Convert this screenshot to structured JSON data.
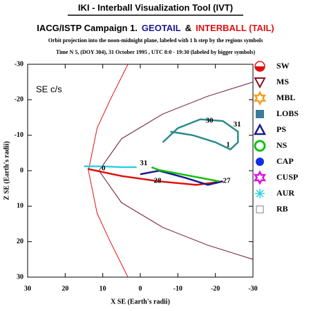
{
  "chart_data": {
    "type": "line",
    "title": "IKI - Interball Visualization Tool (IVT)",
    "subtitle_parts": [
      {
        "text": "IACG/ISTP Campaign 1.",
        "color": "#000000"
      },
      {
        "text": "GEOTAIL",
        "color": "#1a1a8c"
      },
      {
        "text": "&",
        "color": "#000000"
      },
      {
        "text": "INTERBALL (TAIL)",
        "color": "#e01010"
      }
    ],
    "description": "Orbit projection into the noon-midnight plane, labeled with 1 h step by the regions symbols",
    "time_line": "Time N 5, (DOY 304), 31 October  1995 ,  UTC 8:0 - 19:30 (labeled by bigger symbols)",
    "frame_label": "SE c/s",
    "x_label": "X SE (Earth's radii)",
    "y_label": "Z SE (Earth's radii)",
    "xlim": [
      30,
      -30
    ],
    "ylim": [
      -30,
      30
    ],
    "xticks": [
      30,
      20,
      10,
      0,
      -10,
      -20,
      -30
    ],
    "yticks": [
      -30,
      -20,
      -10,
      0,
      10,
      20,
      30
    ],
    "series": [
      {
        "color": "#e01010",
        "x": [
          3.3,
          8,
          11.5,
          13.8,
          11.5,
          8,
          3.3
        ],
        "y": [
          -30,
          -20,
          -12,
          0,
          12,
          20,
          30
        ]
      },
      {
        "color": "#6a1030",
        "x": [
          -30,
          -18,
          -6,
          5,
          11,
          5,
          -6,
          -18,
          -30
        ],
        "y": [
          -25,
          -21,
          -16,
          -9,
          0,
          9,
          16,
          21,
          25
        ]
      },
      {
        "color": "#e01010",
        "x": [
          14,
          5,
          -5,
          -15,
          -22
        ],
        "y": [
          -0.5,
          1.5,
          3,
          4,
          3
        ]
      },
      {
        "color": "#2a8a8a",
        "x": [
          -6,
          -10,
          -16,
          -22,
          -26,
          -26,
          -24,
          -20,
          -14,
          -8
        ],
        "y": [
          -8,
          -12,
          -14.5,
          -14,
          -11,
          -8,
          -6,
          -8,
          -10,
          -11
        ]
      },
      {
        "color": "#1a1a8c",
        "x": [
          0,
          -5,
          -12,
          -18,
          -22
        ],
        "y": [
          1,
          0,
          2,
          4,
          3
        ]
      },
      {
        "color": "#30d0e0",
        "x": [
          15,
          10,
          5,
          1
        ],
        "y": [
          -1.2,
          -1.2,
          -1,
          -1
        ]
      },
      {
        "color": "#10c010",
        "x": [
          -3,
          -5,
          -21
        ],
        "y": [
          -1,
          -0.2,
          3
        ]
      }
    ],
    "annotations": [
      {
        "text": "30",
        "x": -18.4,
        "y": -14,
        "color": "#e01010"
      },
      {
        "text": "31",
        "x": -25.8,
        "y": -13,
        "color": "#e01010"
      },
      {
        "text": "1",
        "x": -23.4,
        "y": -7.2,
        "color": "#e01010"
      },
      {
        "text": "31",
        "x": -0.9,
        "y": -2.1,
        "color": "#000000"
      },
      {
        "text": "28",
        "x": -4.6,
        "y": 2.9,
        "color": "#000000"
      },
      {
        "text": "27",
        "x": -23,
        "y": 2.9,
        "color": "#000000"
      },
      {
        "text": "0",
        "x": 9.8,
        "y": -0.6,
        "color": "#000000"
      }
    ],
    "legend": [
      {
        "label": "SW",
        "color": "#e01010",
        "marker": "half-circle"
      },
      {
        "label": "MS",
        "color": "#8a1020",
        "marker": "triangle-down"
      },
      {
        "label": "MBL",
        "color": "#f0a020",
        "marker": "star"
      },
      {
        "label": "LOBS",
        "color": "#3a7a9a",
        "marker": "square"
      },
      {
        "label": "PS",
        "color": "#1a1a8c",
        "marker": "triangle-up"
      },
      {
        "label": "NS",
        "color": "#10c010",
        "marker": "circle"
      },
      {
        "label": "CAP",
        "color": "#1030e0",
        "marker": "dot"
      },
      {
        "label": "CUSP",
        "color": "#e010e0",
        "marker": "star"
      },
      {
        "label": "AUR",
        "color": "#30d0e0",
        "marker": "asterisk"
      },
      {
        "label": "RB",
        "color": "#808080",
        "marker": "square-open"
      }
    ]
  }
}
